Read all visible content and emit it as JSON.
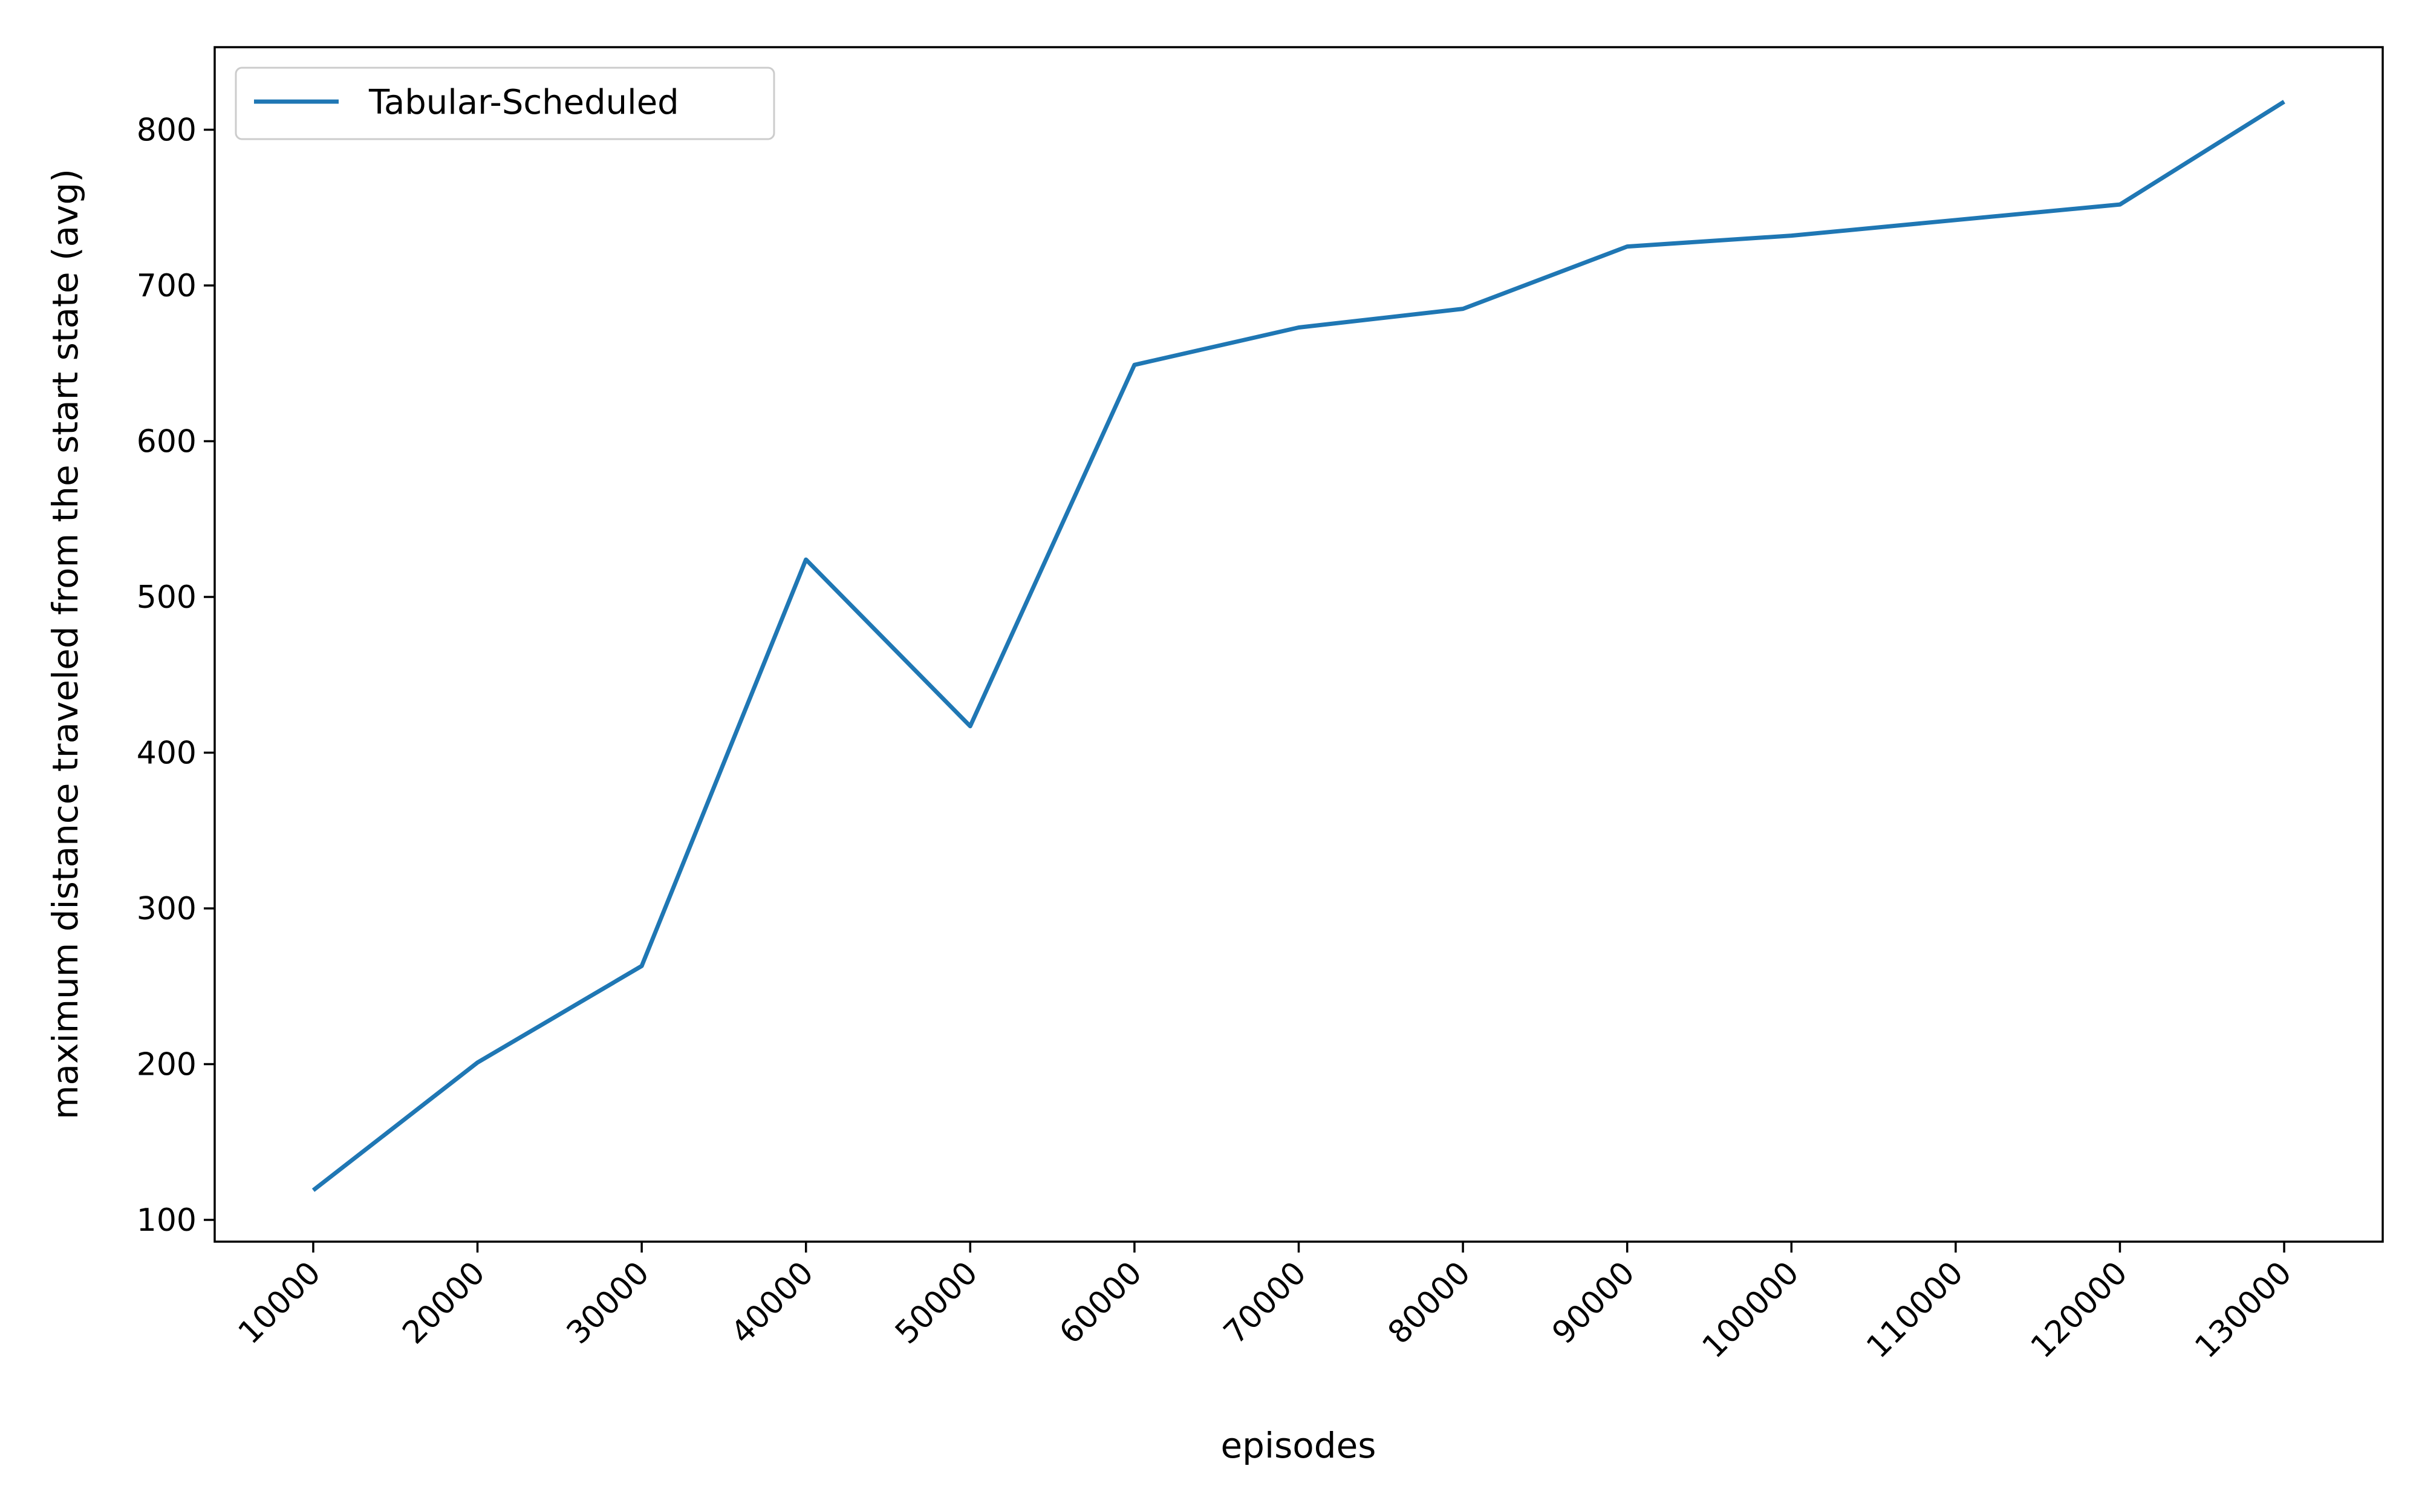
{
  "chart_data": {
    "type": "line",
    "title": "",
    "xlabel": "episodes",
    "ylabel": "maximum distance traveled from the start state (avg)",
    "x": [
      10000,
      20000,
      30000,
      40000,
      50000,
      60000,
      70000,
      80000,
      90000,
      100000,
      110000,
      120000,
      130000
    ],
    "xticks": [
      "10000",
      "20000",
      "30000",
      "40000",
      "50000",
      "60000",
      "70000",
      "80000",
      "90000",
      "100000",
      "110000",
      "120000",
      "130000"
    ],
    "yticks": [
      100,
      200,
      300,
      400,
      500,
      600,
      700,
      800
    ],
    "xlim": [
      4000,
      136000
    ],
    "ylim": [
      86,
      853
    ],
    "grid": false,
    "legend_position": "top-left",
    "series": [
      {
        "name": "Tabular-Scheduled",
        "color": "#1f77b4",
        "values": [
          119,
          201,
          263,
          524,
          417,
          649,
          673,
          685,
          725,
          732,
          742,
          752,
          818
        ]
      }
    ]
  }
}
